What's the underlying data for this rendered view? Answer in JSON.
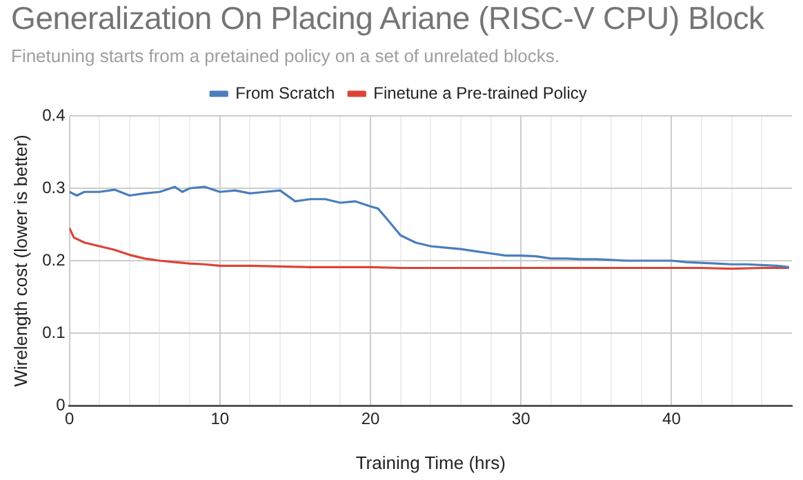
{
  "chart_data": {
    "type": "line",
    "title": "Generalization On Placing Ariane (RISC-V CPU) Block",
    "subtitle": "Finetuning starts from a pretained policy on a set of unrelated blocks.",
    "xlabel": "Training Time (hrs)",
    "ylabel": "Wirelength cost (lower is better)",
    "xlim": [
      0,
      48
    ],
    "ylim": [
      0,
      0.4
    ],
    "xticks": [
      0,
      {
        "value": 2,
        "label": null
      },
      {
        "value": 4,
        "label": null
      },
      {
        "value": 6,
        "label": null
      },
      {
        "value": 8,
        "label": null
      },
      10,
      {
        "value": 12,
        "label": null
      },
      {
        "value": 14,
        "label": null
      },
      {
        "value": 16,
        "label": null
      },
      {
        "value": 18,
        "label": null
      },
      20,
      {
        "value": 22,
        "label": null
      },
      {
        "value": 24,
        "label": null
      },
      {
        "value": 26,
        "label": null
      },
      {
        "value": 28,
        "label": null
      },
      30,
      {
        "value": 32,
        "label": null
      },
      {
        "value": 34,
        "label": null
      },
      {
        "value": 36,
        "label": null
      },
      {
        "value": 38,
        "label": null
      },
      40,
      {
        "value": 42,
        "label": null
      },
      {
        "value": 44,
        "label": null
      },
      {
        "value": 46,
        "label": null
      }
    ],
    "yticks": [
      0,
      0.1,
      0.2,
      0.3,
      0.4
    ],
    "grid": true,
    "legend": "top",
    "marker": "none",
    "line_style": "solid",
    "series": [
      {
        "name": "From Scratch",
        "color": "#4a7ebb",
        "x": [
          0,
          0.5,
          1,
          2,
          3,
          4,
          5,
          6,
          7,
          7.5,
          8,
          9,
          10,
          11,
          12,
          13,
          14,
          15,
          16,
          17,
          18,
          19,
          20,
          20.5,
          21,
          22,
          23,
          24,
          25,
          26,
          27,
          28,
          29,
          30,
          31,
          32,
          33,
          34,
          35,
          36,
          37,
          38,
          39,
          40,
          41,
          42,
          43,
          44,
          45,
          46,
          47,
          47.8
        ],
        "values": [
          0.295,
          0.29,
          0.295,
          0.295,
          0.298,
          0.29,
          0.293,
          0.295,
          0.302,
          0.295,
          0.3,
          0.302,
          0.295,
          0.297,
          0.293,
          0.295,
          0.297,
          0.282,
          0.285,
          0.285,
          0.28,
          0.282,
          0.275,
          0.272,
          0.26,
          0.235,
          0.225,
          0.22,
          0.218,
          0.216,
          0.213,
          0.21,
          0.207,
          0.207,
          0.206,
          0.203,
          0.203,
          0.202,
          0.202,
          0.201,
          0.2,
          0.2,
          0.2,
          0.2,
          0.198,
          0.197,
          0.196,
          0.195,
          0.195,
          0.194,
          0.193,
          0.191
        ]
      },
      {
        "name": "Finetune a Pre-trained Policy",
        "color": "#db4437",
        "x": [
          0,
          0.3,
          1,
          2,
          3,
          4,
          5,
          6,
          7,
          8,
          9,
          10,
          12,
          14,
          16,
          18,
          20,
          22,
          24,
          26,
          28,
          30,
          32,
          34,
          36,
          38,
          40,
          42,
          44,
          46,
          47.8
        ],
        "values": [
          0.245,
          0.232,
          0.225,
          0.22,
          0.215,
          0.208,
          0.203,
          0.2,
          0.198,
          0.196,
          0.195,
          0.193,
          0.193,
          0.192,
          0.191,
          0.191,
          0.191,
          0.19,
          0.19,
          0.19,
          0.19,
          0.19,
          0.19,
          0.19,
          0.19,
          0.19,
          0.19,
          0.19,
          0.189,
          0.19,
          0.19
        ]
      }
    ]
  }
}
